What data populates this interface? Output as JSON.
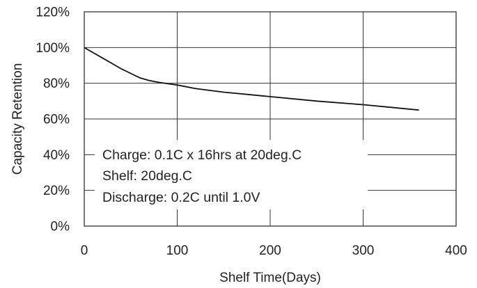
{
  "chart_data": {
    "type": "line",
    "title": "",
    "xlabel": "Shelf Time(Days)",
    "ylabel": "Capacity Retention",
    "xlim": [
      0,
      400
    ],
    "ylim": [
      0,
      120
    ],
    "x_ticks": [
      0,
      100,
      200,
      300,
      400
    ],
    "x_tick_labels": [
      "0",
      "100",
      "200",
      "300",
      "400"
    ],
    "y_ticks": [
      0,
      20,
      40,
      60,
      80,
      100,
      120
    ],
    "y_tick_labels": [
      "0%",
      "20%",
      "40%",
      "60%",
      "80%",
      "100%",
      "120%"
    ],
    "grid": true,
    "series": [
      {
        "x": [
          0,
          10,
          20,
          30,
          40,
          50,
          60,
          70,
          80,
          100,
          120,
          150,
          180,
          200,
          250,
          300,
          330,
          360
        ],
        "y": [
          100,
          97,
          94,
          91,
          88,
          85.5,
          83,
          81.5,
          80.5,
          79,
          77,
          75,
          73.5,
          72.5,
          70,
          68,
          66.5,
          65
        ]
      }
    ],
    "annotations": [
      "Charge: 0.1C x 16hrs at 20deg.C",
      "Shelf: 20deg.C",
      "Discharge: 0.2C until  1.0V"
    ],
    "colors": {
      "line": "#111111",
      "grid": "#333333",
      "text": "#222222"
    }
  }
}
